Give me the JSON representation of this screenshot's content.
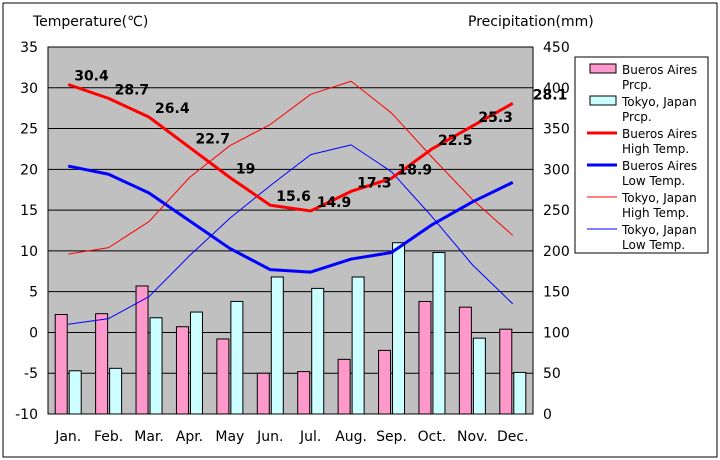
{
  "chart_data": {
    "type": "bar+line",
    "categories": [
      "Jan.",
      "Feb.",
      "Mar.",
      "Apr.",
      "May",
      "Jun.",
      "Jul.",
      "Aug.",
      "Sep.",
      "Oct.",
      "Nov.",
      "Dec."
    ],
    "left_axis": {
      "label": "Temperature(℃)",
      "min": -10,
      "max": 35,
      "step": 5,
      "ticks": [
        "35",
        "30",
        "25",
        "20",
        "15",
        "10",
        "5",
        "0",
        "-5",
        "-10"
      ]
    },
    "right_axis": {
      "label": "Precipitation(mm)",
      "min": 0,
      "max": 450,
      "step": 50,
      "ticks": [
        "450",
        "400",
        "350",
        "300",
        "250",
        "200",
        "150",
        "100",
        "50",
        "0"
      ]
    },
    "bar_series": [
      {
        "name": "Bueros Aires Prcp.",
        "color": "#ff99cc",
        "values": [
          122,
          123,
          157,
          107,
          92,
          50,
          52,
          67,
          78,
          138,
          131,
          104
        ]
      },
      {
        "name": "Tokyo, Japan Prcp.",
        "color": "#ccffff",
        "values": [
          53,
          56,
          118,
          125,
          138,
          168,
          154,
          168,
          210,
          198,
          93,
          51
        ]
      }
    ],
    "line_series": [
      {
        "name": "Bueros Aires High Temp.",
        "color": "#ff0000",
        "width": "thick",
        "values": [
          30.4,
          28.7,
          26.4,
          22.7,
          19,
          15.6,
          14.9,
          17.3,
          18.9,
          22.5,
          25.3,
          28.1
        ],
        "labels": [
          "30.4",
          "28.7",
          "26.4",
          "22.7",
          "19",
          "15.6",
          "14.9",
          "17.3",
          "18.9",
          "22.5",
          "25.3",
          "28.1"
        ]
      },
      {
        "name": "Bueros Aires Low Temp.",
        "color": "#0000ff",
        "width": "thick",
        "values": [
          20.4,
          19.4,
          17.1,
          13.7,
          10.3,
          7.7,
          7.4,
          9.0,
          9.8,
          13.2,
          16.0,
          18.4
        ]
      },
      {
        "name": "Tokyo, Japan High Temp.",
        "color": "#ff0000",
        "width": "thin",
        "values": [
          9.6,
          10.4,
          13.6,
          19.0,
          22.9,
          25.5,
          29.2,
          30.8,
          26.9,
          21.5,
          16.3,
          11.9
        ]
      },
      {
        "name": "Tokyo, Japan Low Temp.",
        "color": "#0000ff",
        "width": "thin",
        "values": [
          1.0,
          1.7,
          4.4,
          9.4,
          14.0,
          18.0,
          21.8,
          23.0,
          19.7,
          14.2,
          8.3,
          3.5
        ]
      }
    ],
    "legend": [
      {
        "line1": "Bueros Aires",
        "line2": "Prcp.",
        "kind": "bar",
        "color": "#ff99cc"
      },
      {
        "line1": "Tokyo, Japan",
        "line2": "Prcp.",
        "kind": "bar",
        "color": "#ccffff"
      },
      {
        "line1": "Bueros Aires",
        "line2": "High Temp.",
        "kind": "thick",
        "color": "#ff0000"
      },
      {
        "line1": "Bueros Aires",
        "line2": "Low Temp.",
        "kind": "thick",
        "color": "#0000ff"
      },
      {
        "line1": "Tokyo, Japan",
        "line2": "High Temp.",
        "kind": "thin",
        "color": "#ff0000"
      },
      {
        "line1": "Tokyo, Japan",
        "line2": "Low Temp.",
        "kind": "thin",
        "color": "#0000ff"
      }
    ],
    "legend_position": "right",
    "plot_background": "#c0c0c0",
    "grid": true
  }
}
